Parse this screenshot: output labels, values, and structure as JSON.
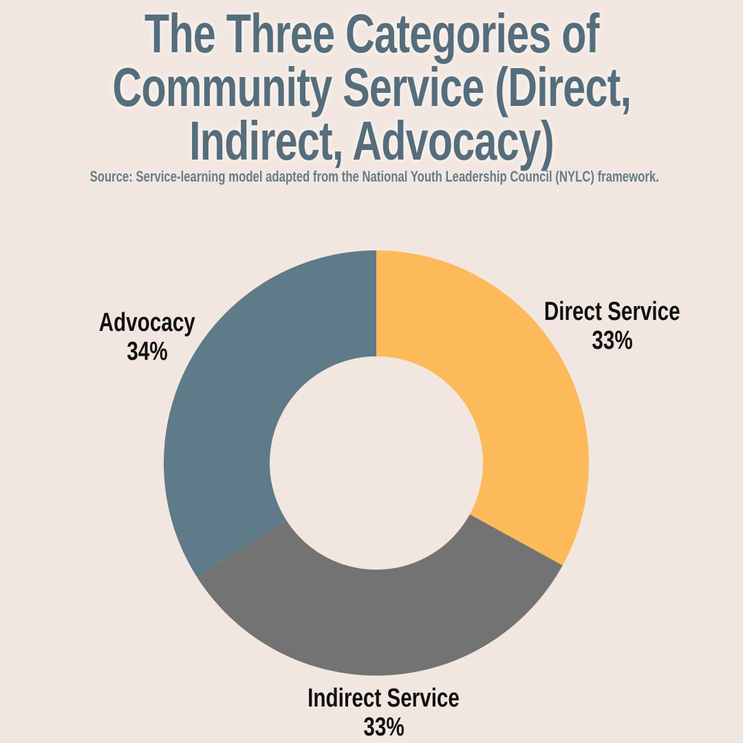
{
  "chart_data": {
    "type": "pie",
    "style": "donut",
    "title_lines": [
      "The Three Categories of",
      "Community Service (Direct,",
      "Indirect, Advocacy)"
    ],
    "subtitle": "Source: Service-learning model adapted from the National Youth Leadership Council (NYLC) framework.",
    "categories": [
      "Direct Service",
      "Indirect Service",
      "Advocacy"
    ],
    "values": [
      33,
      33,
      34
    ],
    "data_labels": [
      "33%",
      "33%",
      "34%"
    ],
    "colors": [
      "#FDBA5A",
      "#737373",
      "#5F7A89"
    ],
    "background": "#F2E7E0",
    "title_color": "#566D7C"
  }
}
